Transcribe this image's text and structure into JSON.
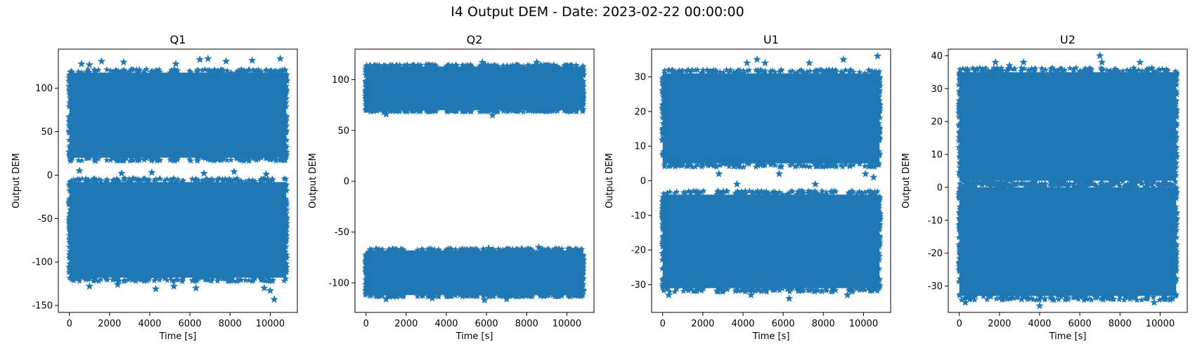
{
  "figure": {
    "title": "I4 Output DEM - Date: 2023-02-22 00:00:00",
    "marker_color": "#1f77b4",
    "marker": "star"
  },
  "chart_data": [
    {
      "type": "scatter",
      "title": "Q1",
      "xlabel": "Time [s]",
      "ylabel": "Output DEM",
      "xlim": [
        -550,
        11350
      ],
      "ylim": [
        -158,
        145
      ],
      "xticks": [
        0,
        2000,
        4000,
        6000,
        8000,
        10000
      ],
      "yticks": [
        -150,
        -100,
        -50,
        0,
        50,
        100
      ],
      "x_range": [
        0,
        10800
      ],
      "bands": [
        {
          "y_min": 20,
          "y_max": 118
        },
        {
          "y_min": -118,
          "y_max": -8
        }
      ],
      "outliers": [
        {
          "x": 600,
          "y": 128
        },
        {
          "x": 1600,
          "y": 131
        },
        {
          "x": 2700,
          "y": 130
        },
        {
          "x": 5300,
          "y": 128
        },
        {
          "x": 6500,
          "y": 133
        },
        {
          "x": 6900,
          "y": 134
        },
        {
          "x": 7800,
          "y": 131
        },
        {
          "x": 9100,
          "y": 132
        },
        {
          "x": 10500,
          "y": 134
        },
        {
          "x": 1000,
          "y": 127
        },
        {
          "x": 1000,
          "y": -128
        },
        {
          "x": 2400,
          "y": -126
        },
        {
          "x": 4300,
          "y": -131
        },
        {
          "x": 5200,
          "y": -128
        },
        {
          "x": 6300,
          "y": -130
        },
        {
          "x": 9700,
          "y": -130
        },
        {
          "x": 10200,
          "y": -143
        },
        {
          "x": 10000,
          "y": -133
        },
        {
          "x": 500,
          "y": 5
        },
        {
          "x": 2600,
          "y": 2
        },
        {
          "x": 4100,
          "y": 3
        },
        {
          "x": 6700,
          "y": 2
        },
        {
          "x": 8200,
          "y": 4
        },
        {
          "x": 9800,
          "y": 1
        }
      ]
    },
    {
      "type": "scatter",
      "title": "Q2",
      "xlabel": "Time [s]",
      "ylabel": "Output DEM",
      "xlim": [
        -550,
        11350
      ],
      "ylim": [
        -129,
        130
      ],
      "xticks": [
        0,
        2000,
        4000,
        6000,
        8000,
        10000
      ],
      "yticks": [
        -100,
        -50,
        0,
        50,
        100
      ],
      "x_range": [
        0,
        10800
      ],
      "bands": [
        {
          "y_min": 70,
          "y_max": 113
        },
        {
          "y_min": -112,
          "y_max": -68
        }
      ],
      "outliers": [
        {
          "x": 1000,
          "y": 66
        },
        {
          "x": 900,
          "y": 68
        },
        {
          "x": 6300,
          "y": 65
        },
        {
          "x": 5800,
          "y": 117
        },
        {
          "x": 8500,
          "y": 117
        },
        {
          "x": 1000,
          "y": -116
        },
        {
          "x": 3300,
          "y": -115
        },
        {
          "x": 5900,
          "y": -117
        },
        {
          "x": 7000,
          "y": -116
        },
        {
          "x": 8600,
          "y": -65
        },
        {
          "x": 6100,
          "y": -66
        }
      ]
    },
    {
      "type": "scatter",
      "title": "U1",
      "xlabel": "Time [s]",
      "ylabel": "Output DEM",
      "xlim": [
        -550,
        11350
      ],
      "ylim": [
        -38,
        38
      ],
      "xticks": [
        0,
        2000,
        4000,
        6000,
        8000,
        10000
      ],
      "yticks": [
        -30,
        -20,
        -10,
        0,
        10,
        20,
        30
      ],
      "x_range": [
        0,
        10800
      ],
      "bands": [
        {
          "y_min": 5,
          "y_max": 31
        },
        {
          "y_min": -31,
          "y_max": -4
        }
      ],
      "outliers": [
        {
          "x": 4200,
          "y": 34
        },
        {
          "x": 4700,
          "y": 35
        },
        {
          "x": 5100,
          "y": 34
        },
        {
          "x": 9000,
          "y": 35
        },
        {
          "x": 10700,
          "y": 36
        },
        {
          "x": 7300,
          "y": 34
        },
        {
          "x": 2800,
          "y": 2
        },
        {
          "x": 3700,
          "y": -1
        },
        {
          "x": 5800,
          "y": 2
        },
        {
          "x": 7600,
          "y": -1
        },
        {
          "x": 10100,
          "y": 2
        },
        {
          "x": 10500,
          "y": 1
        },
        {
          "x": 4400,
          "y": -33
        },
        {
          "x": 6300,
          "y": -34
        },
        {
          "x": 9200,
          "y": -33
        },
        {
          "x": 300,
          "y": -33
        }
      ]
    },
    {
      "type": "scatter",
      "title": "U2",
      "xlabel": "Time [s]",
      "ylabel": "Output DEM",
      "xlim": [
        -550,
        11350
      ],
      "ylim": [
        -38,
        42
      ],
      "xticks": [
        0,
        2000,
        4000,
        6000,
        8000,
        10000
      ],
      "yticks": [
        -30,
        -20,
        -10,
        0,
        10,
        20,
        30,
        40
      ],
      "x_range": [
        0,
        10800
      ],
      "bands": [
        {
          "y_min": 2,
          "y_max": 35
        },
        {
          "y_min": -33,
          "y_max": 0
        }
      ],
      "outliers": [
        {
          "x": 1800,
          "y": 38
        },
        {
          "x": 2500,
          "y": 37
        },
        {
          "x": 3200,
          "y": 38
        },
        {
          "x": 7000,
          "y": 40
        },
        {
          "x": 7100,
          "y": 38
        },
        {
          "x": 9000,
          "y": 38
        },
        {
          "x": 4000,
          "y": -36
        },
        {
          "x": 3100,
          "y": -34
        },
        {
          "x": 9700,
          "y": -35
        },
        {
          "x": 300,
          "y": -35
        }
      ]
    }
  ]
}
